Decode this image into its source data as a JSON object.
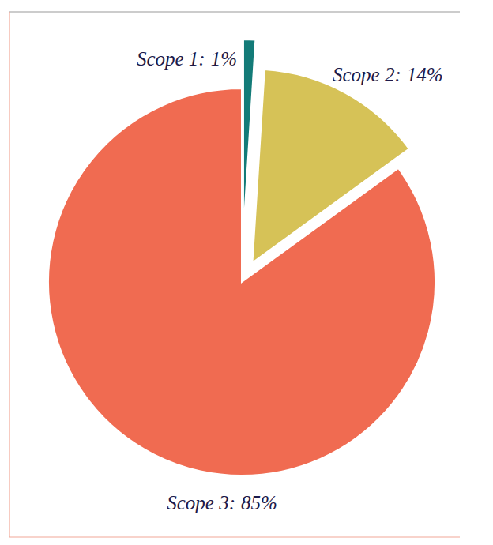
{
  "chart_data": {
    "type": "pie",
    "categories": [
      "Scope 1:",
      "Scope 2:",
      "Scope 3:"
    ],
    "values": [
      1,
      14,
      85
    ],
    "value_labels": [
      "1%",
      "14%",
      "85%"
    ],
    "colors": [
      "#137b78",
      "#d6c257",
      "#f06b51"
    ],
    "data_labels": true
  }
}
